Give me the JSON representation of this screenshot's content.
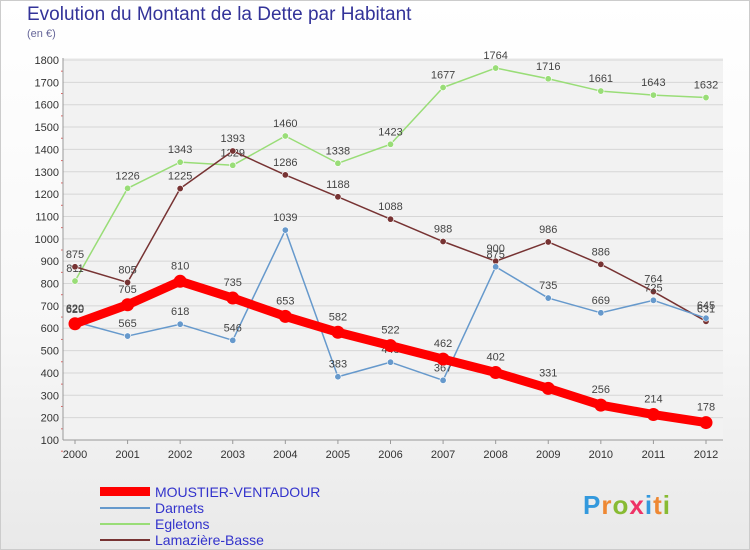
{
  "header": {
    "title": "Evolution du Montant de la Dette par Habitant",
    "subtitle": "(en €)"
  },
  "chart_data": {
    "type": "line",
    "title": "Evolution du Montant de la Dette par Habitant",
    "subtitle": "(en €)",
    "xlabel": "",
    "ylabel": "",
    "ylim": [
      100,
      1800
    ],
    "yticks": [
      100,
      200,
      300,
      400,
      500,
      600,
      700,
      800,
      900,
      1000,
      1100,
      1200,
      1300,
      1400,
      1500,
      1600,
      1700,
      1800
    ],
    "categories": [
      "2000",
      "2001",
      "2002",
      "2003",
      "2004",
      "2005",
      "2006",
      "2007",
      "2008",
      "2009",
      "2010",
      "2011",
      "2012"
    ],
    "grid": "horizontal",
    "legend_position": "bottom-left",
    "series": [
      {
        "name": "Egletons",
        "color": "#99dd77",
        "values": [
          811,
          1226,
          1343,
          1329,
          1460,
          1338,
          1423,
          1677,
          1764,
          1716,
          1661,
          1643,
          1632
        ]
      },
      {
        "name": "Lamazière-Basse",
        "color": "#773333",
        "values": [
          875,
          805,
          1225,
          1393,
          1286,
          1188,
          1088,
          988,
          900,
          986,
          886,
          764,
          631
        ]
      },
      {
        "name": "Darnets",
        "color": "#6699cc",
        "values": [
          629,
          565,
          618,
          546,
          1039,
          383,
          448,
          367,
          875,
          735,
          669,
          725,
          645
        ]
      },
      {
        "name": "MOUSTIER-VENTADOUR",
        "color": "#ff0000",
        "values": [
          620,
          705,
          810,
          735,
          653,
          582,
          522,
          462,
          402,
          331,
          256,
          214,
          178
        ]
      }
    ]
  },
  "legend": {
    "items": [
      {
        "label": "MOUSTIER-VENTADOUR",
        "color": "#ff0000"
      },
      {
        "label": "Darnets",
        "color": "#6699cc"
      },
      {
        "label": "Egletons",
        "color": "#99dd77"
      },
      {
        "label": "Lamazière-Basse",
        "color": "#773333"
      }
    ]
  },
  "logo": {
    "letters": [
      "P",
      "r",
      "o",
      "x",
      "i",
      "t",
      "i"
    ],
    "colors": [
      "#3399dd",
      "#ee8833",
      "#88bb33",
      "#ee3366",
      "#3399dd",
      "#ee8833",
      "#88bb33"
    ]
  }
}
